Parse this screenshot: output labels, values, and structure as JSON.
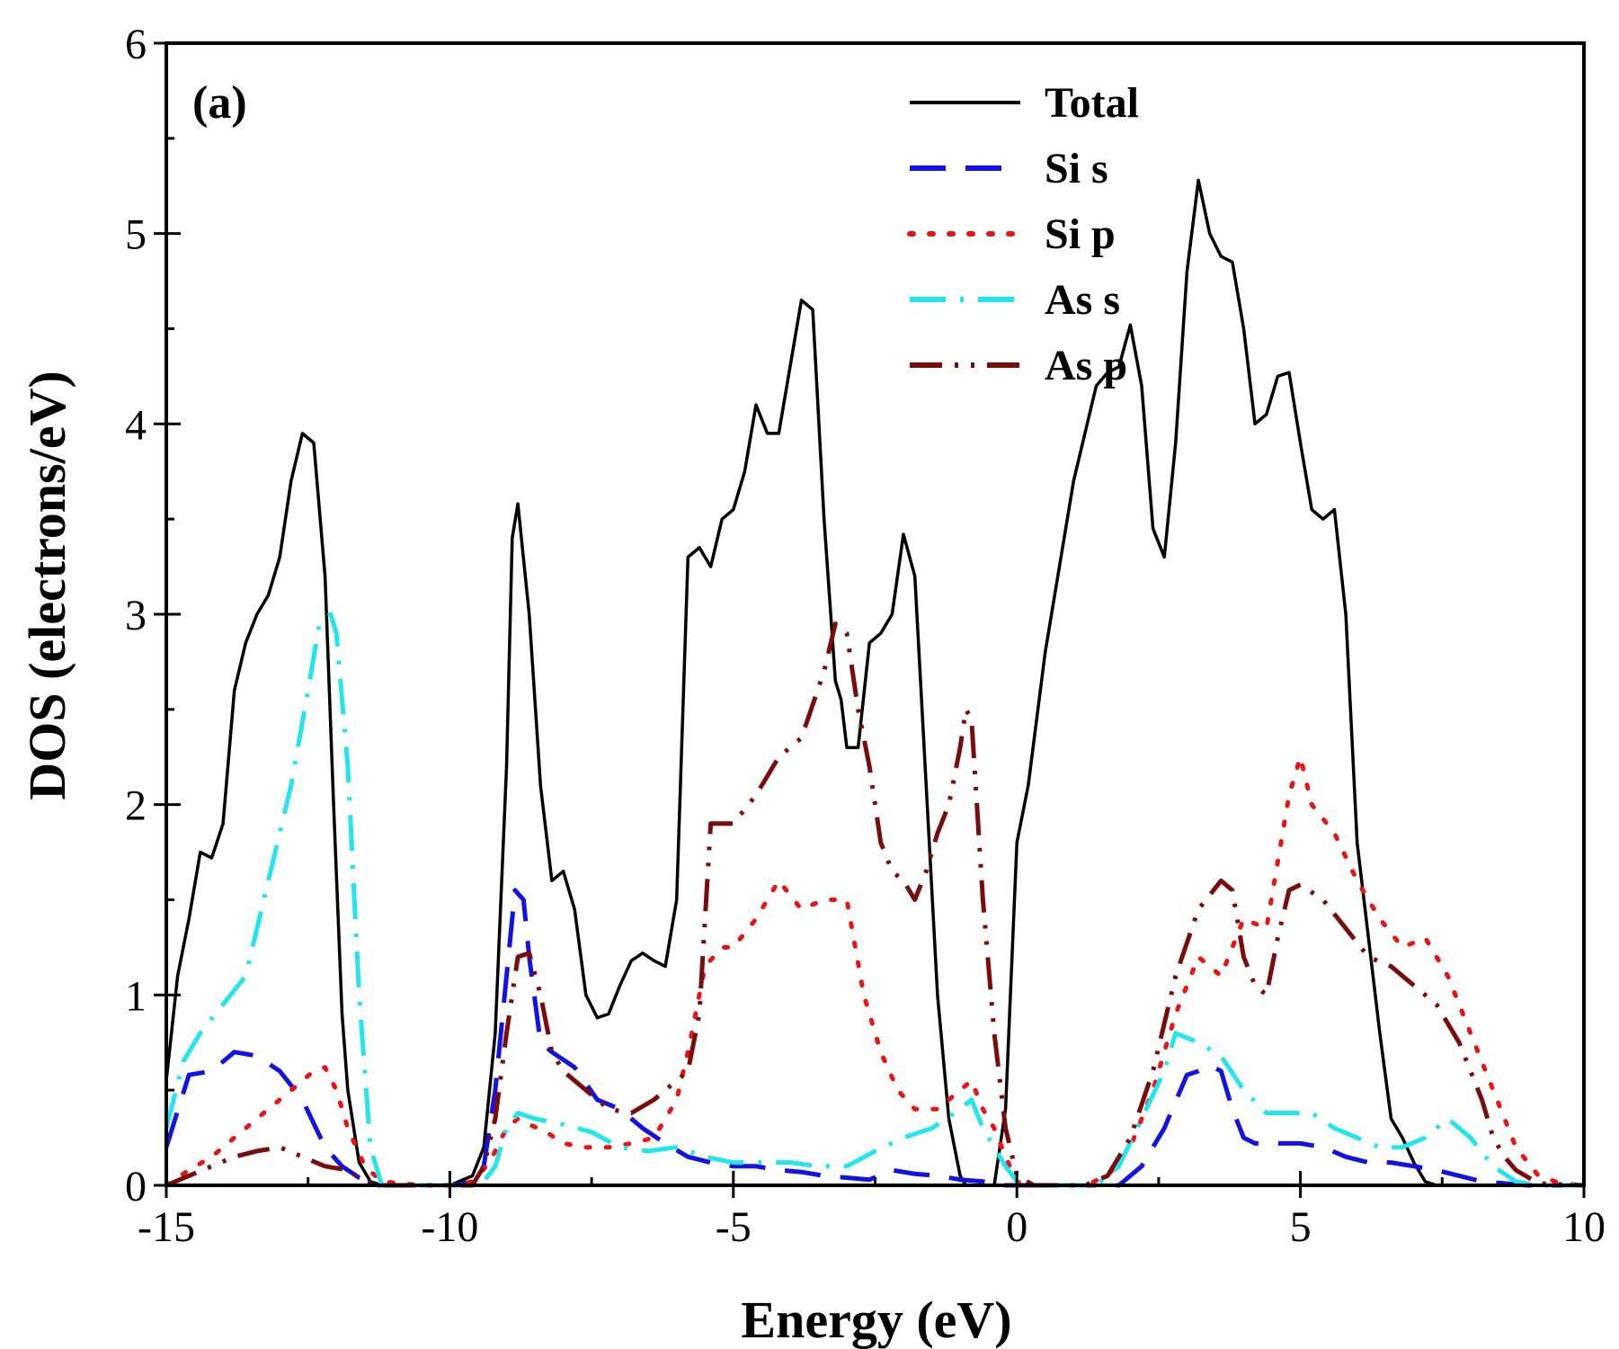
{
  "chart_data": {
    "type": "line",
    "panel_label": "(a)",
    "xlabel": "Energy (eV)",
    "ylabel": "DOS (electrons/eV)",
    "xlim": [
      -15,
      10
    ],
    "ylim": [
      0,
      6
    ],
    "xticks": [
      -15,
      -10,
      -5,
      0,
      5,
      10
    ],
    "yticks": [
      0,
      1,
      2,
      3,
      4,
      5,
      6
    ],
    "legend_position": "top-right",
    "series": [
      {
        "name": "Total",
        "color": "#000000",
        "dash": "solid",
        "x": [
          -15,
          -14.8,
          -14.6,
          -14.4,
          -14.2,
          -14,
          -13.8,
          -13.6,
          -13.4,
          -13.2,
          -13,
          -12.8,
          -12.6,
          -12.4,
          -12.2,
          -12.05,
          -11.9,
          -11.8,
          -11.6,
          -11.4,
          -11.2,
          -11,
          -10.5,
          -10,
          -9.6,
          -9.4,
          -9.2,
          -9.0,
          -8.9,
          -8.8,
          -8.6,
          -8.4,
          -8.2,
          -8.0,
          -7.8,
          -7.6,
          -7.4,
          -7.2,
          -7.0,
          -6.8,
          -6.6,
          -6.4,
          -6.2,
          -6.0,
          -5.8,
          -5.6,
          -5.4,
          -5.2,
          -5.0,
          -4.8,
          -4.6,
          -4.4,
          -4.2,
          -4.0,
          -3.8,
          -3.6,
          -3.4,
          -3.2,
          -3.1,
          -3.0,
          -2.8,
          -2.6,
          -2.4,
          -2.2,
          -2.0,
          -1.8,
          -1.6,
          -1.4,
          -1.2,
          -1.0,
          -0.9,
          -0.8,
          -0.6,
          -0.4,
          -0.2,
          0,
          0.2,
          0.5,
          1.0,
          1.4,
          1.6,
          1.8,
          2.0,
          2.2,
          2.4,
          2.6,
          2.8,
          3.0,
          3.2,
          3.4,
          3.6,
          3.8,
          4.0,
          4.2,
          4.4,
          4.6,
          4.8,
          5.0,
          5.2,
          5.4,
          5.6,
          5.8,
          6.0,
          6.2,
          6.4,
          6.6,
          6.8,
          7.0,
          7.2,
          7.4,
          7.6,
          7.8,
          8.0,
          8.2,
          8.4,
          8.6,
          8.8,
          9.0,
          9.2,
          9.4,
          9.6,
          10
        ],
        "y": [
          0.55,
          1.1,
          1.4,
          1.75,
          1.72,
          1.9,
          2.6,
          2.85,
          3.0,
          3.1,
          3.3,
          3.7,
          3.95,
          3.9,
          3.2,
          2.0,
          0.9,
          0.5,
          0.12,
          0.02,
          0,
          0,
          0,
          0,
          0.05,
          0.2,
          0.8,
          2.2,
          3.4,
          3.58,
          3.0,
          2.1,
          1.6,
          1.65,
          1.45,
          1.0,
          0.88,
          0.9,
          1.05,
          1.18,
          1.22,
          1.18,
          1.15,
          1.5,
          3.3,
          3.35,
          3.25,
          3.5,
          3.55,
          3.75,
          4.1,
          3.95,
          3.95,
          4.3,
          4.65,
          4.6,
          3.5,
          2.65,
          2.55,
          2.3,
          2.3,
          2.85,
          2.9,
          3.0,
          3.42,
          3.2,
          2.1,
          1.0,
          0.35,
          0.05,
          0,
          0,
          0,
          0,
          0.4,
          1.8,
          2.1,
          2.8,
          3.7,
          4.2,
          4.27,
          4.3,
          4.52,
          4.2,
          3.45,
          3.3,
          3.9,
          4.8,
          5.28,
          5.0,
          4.88,
          4.85,
          4.5,
          4.0,
          4.05,
          4.25,
          4.27,
          3.9,
          3.55,
          3.5,
          3.55,
          3.0,
          1.8,
          1.3,
          0.8,
          0.35,
          0.25,
          0.12,
          0.02,
          0.0,
          0.0,
          0.0,
          0.0,
          0.0,
          0.0,
          0.0,
          0.0,
          0.0,
          0.0,
          0.0,
          0.0,
          0.0
        ]
      },
      {
        "name": "Si s",
        "color": "#1212e6",
        "dash": "longdash",
        "x": [
          -15,
          -14.6,
          -14.2,
          -13.8,
          -13.4,
          -13.0,
          -12.6,
          -12.2,
          -11.9,
          -11.6,
          -11.3,
          -10.5,
          -9.9,
          -9.6,
          -9.4,
          -9.2,
          -9.0,
          -8.85,
          -8.7,
          -8.6,
          -8.4,
          -8.2,
          -7.8,
          -7.4,
          -7.0,
          -6.6,
          -6.2,
          -5.8,
          -5.4,
          -5.0,
          -4.6,
          -4.2,
          -3.8,
          -3.4,
          -3.0,
          -2.6,
          -2.2,
          -1.8,
          -1.4,
          -1.0,
          -0.6,
          -0.2,
          0,
          0.2,
          0.6,
          1.0,
          1.4,
          1.8,
          2.2,
          2.6,
          3.0,
          3.2,
          3.4,
          3.6,
          3.8,
          4.0,
          4.2,
          4.6,
          5.0,
          5.4,
          5.8,
          6.2,
          6.6,
          7.0,
          7.4,
          7.8,
          8.2,
          8.6,
          9.0,
          10
        ],
        "y": [
          0.2,
          0.58,
          0.6,
          0.7,
          0.68,
          0.6,
          0.45,
          0.2,
          0.1,
          0.04,
          0.0,
          0.0,
          0.0,
          0.02,
          0.1,
          0.5,
          1.1,
          1.55,
          1.5,
          1.2,
          0.75,
          0.7,
          0.62,
          0.45,
          0.4,
          0.3,
          0.22,
          0.15,
          0.12,
          0.1,
          0.1,
          0.08,
          0.07,
          0.05,
          0.04,
          0.03,
          0.08,
          0.06,
          0.05,
          0.03,
          0.02,
          0.0,
          0.0,
          0.0,
          0.0,
          0.0,
          0.0,
          0.0,
          0.1,
          0.3,
          0.58,
          0.6,
          0.63,
          0.6,
          0.4,
          0.25,
          0.22,
          0.22,
          0.22,
          0.2,
          0.15,
          0.12,
          0.12,
          0.1,
          0.08,
          0.05,
          0.02,
          0.01,
          0.0,
          0.0
        ]
      },
      {
        "name": "Si p",
        "color": "#ee1111",
        "dash": "dotted",
        "x": [
          -15,
          -14.6,
          -14.2,
          -13.8,
          -13.4,
          -13.0,
          -12.6,
          -12.4,
          -12.2,
          -12.0,
          -11.8,
          -11.5,
          -11.2,
          -10.5,
          -9.9,
          -9.6,
          -9.3,
          -9.0,
          -8.8,
          -8.6,
          -8.3,
          -8.0,
          -7.6,
          -7.2,
          -6.8,
          -6.4,
          -6.0,
          -5.8,
          -5.5,
          -5.2,
          -5.0,
          -4.6,
          -4.2,
          -3.8,
          -3.4,
          -3.0,
          -2.7,
          -2.4,
          -2.1,
          -1.8,
          -1.4,
          -1.0,
          -0.8,
          -0.6,
          -0.4,
          -0.2,
          0,
          0.2,
          0.6,
          1.2,
          1.6,
          2.0,
          2.4,
          2.8,
          3.2,
          3.6,
          4.0,
          4.4,
          4.8,
          5.0,
          5.2,
          5.6,
          6.0,
          6.4,
          6.8,
          7.2,
          7.6,
          8.0,
          8.4,
          8.8,
          9.2,
          9.6,
          10
        ],
        "y": [
          0.0,
          0.08,
          0.15,
          0.25,
          0.35,
          0.45,
          0.55,
          0.6,
          0.62,
          0.5,
          0.3,
          0.1,
          0.02,
          0.0,
          0.0,
          0.02,
          0.12,
          0.3,
          0.35,
          0.32,
          0.28,
          0.22,
          0.2,
          0.2,
          0.22,
          0.25,
          0.45,
          0.7,
          1.15,
          1.25,
          1.25,
          1.4,
          1.6,
          1.45,
          1.5,
          1.5,
          1.0,
          0.7,
          0.5,
          0.4,
          0.4,
          0.5,
          0.55,
          0.4,
          0.3,
          0.15,
          0.02,
          0.0,
          0.0,
          0.0,
          0.05,
          0.2,
          0.5,
          0.9,
          1.2,
          1.1,
          1.4,
          1.35,
          2.05,
          2.25,
          2.0,
          1.85,
          1.6,
          1.4,
          1.25,
          1.3,
          1.1,
          0.8,
          0.5,
          0.2,
          0.05,
          0.01,
          0.0
        ]
      },
      {
        "name": "As s",
        "color": "#22e5ee",
        "dash": "dashdot",
        "x": [
          -15,
          -14.7,
          -14.4,
          -14.0,
          -13.6,
          -13.2,
          -12.8,
          -12.5,
          -12.3,
          -12.1,
          -12.0,
          -11.8,
          -11.6,
          -11.4,
          -11.2,
          -10.5,
          -9.9,
          -9.6,
          -9.4,
          -9.2,
          -9.0,
          -8.8,
          -8.5,
          -8.0,
          -7.5,
          -7.0,
          -6.5,
          -6.0,
          -5.5,
          -5.0,
          -4.5,
          -4.0,
          -3.5,
          -3.0,
          -2.5,
          -2.0,
          -1.5,
          -1.0,
          -0.8,
          -0.6,
          -0.4,
          -0.2,
          0,
          0.3,
          0.8,
          1.4,
          1.8,
          2.2,
          2.6,
          2.8,
          3.2,
          3.6,
          4.0,
          4.4,
          4.8,
          5.2,
          5.6,
          6.0,
          6.4,
          6.8,
          7.2,
          7.4,
          7.6,
          8.0,
          8.4,
          8.8,
          9.2,
          10
        ],
        "y": [
          0.3,
          0.65,
          0.8,
          0.95,
          1.1,
          1.6,
          2.1,
          2.6,
          2.95,
          3.0,
          2.9,
          2.2,
          1.0,
          0.2,
          0.0,
          0.0,
          0.0,
          0.0,
          0.02,
          0.1,
          0.3,
          0.38,
          0.35,
          0.32,
          0.28,
          0.2,
          0.18,
          0.2,
          0.15,
          0.12,
          0.12,
          0.12,
          0.1,
          0.1,
          0.18,
          0.25,
          0.3,
          0.4,
          0.45,
          0.3,
          0.2,
          0.1,
          0.02,
          0.0,
          0.0,
          0.0,
          0.1,
          0.35,
          0.6,
          0.8,
          0.75,
          0.68,
          0.5,
          0.38,
          0.38,
          0.38,
          0.3,
          0.25,
          0.2,
          0.2,
          0.25,
          0.3,
          0.35,
          0.25,
          0.1,
          0.02,
          0.0,
          0.0
        ]
      },
      {
        "name": "As p",
        "color": "#7a0c0c",
        "dash": "dashdotdot",
        "x": [
          -15,
          -14.6,
          -14.2,
          -13.8,
          -13.4,
          -13.0,
          -12.6,
          -12.2,
          -11.8,
          -11.5,
          -11.2,
          -10.5,
          -9.9,
          -9.6,
          -9.4,
          -9.2,
          -9.0,
          -8.8,
          -8.6,
          -8.4,
          -8.2,
          -8.0,
          -7.6,
          -7.2,
          -6.8,
          -6.4,
          -6.0,
          -5.8,
          -5.6,
          -5.4,
          -5.0,
          -4.6,
          -4.2,
          -3.8,
          -3.4,
          -3.2,
          -3.0,
          -2.8,
          -2.6,
          -2.4,
          -2.2,
          -2.0,
          -1.8,
          -1.6,
          -1.4,
          -1.2,
          -1.0,
          -0.9,
          -0.8,
          -0.6,
          -0.4,
          -0.2,
          0,
          0.3,
          0.8,
          1.2,
          1.6,
          2.0,
          2.4,
          2.8,
          3.2,
          3.6,
          3.8,
          4.0,
          4.2,
          4.4,
          4.6,
          4.8,
          5.0,
          5.4,
          5.8,
          6.2,
          6.6,
          7.0,
          7.4,
          7.8,
          8.2,
          8.4,
          8.6,
          8.8,
          9.2,
          10
        ],
        "y": [
          0.0,
          0.05,
          0.1,
          0.15,
          0.18,
          0.2,
          0.15,
          0.1,
          0.08,
          0.02,
          0.0,
          0.0,
          0.0,
          0.0,
          0.1,
          0.35,
          0.8,
          1.2,
          1.22,
          1.0,
          0.7,
          0.6,
          0.5,
          0.4,
          0.38,
          0.45,
          0.55,
          0.6,
          0.9,
          1.9,
          1.9,
          2.05,
          2.25,
          2.35,
          2.7,
          2.95,
          2.9,
          2.5,
          2.2,
          1.8,
          1.65,
          1.6,
          1.5,
          1.65,
          1.85,
          2.0,
          2.3,
          2.5,
          2.45,
          1.5,
          0.8,
          0.3,
          0.05,
          0.0,
          0.0,
          0.0,
          0.05,
          0.25,
          0.6,
          1.1,
          1.45,
          1.6,
          1.55,
          1.2,
          1.05,
          1.0,
          1.3,
          1.55,
          1.58,
          1.5,
          1.35,
          1.2,
          1.15,
          1.05,
          0.95,
          0.75,
          0.45,
          0.25,
          0.15,
          0.08,
          0.01,
          0.0
        ]
      }
    ]
  }
}
